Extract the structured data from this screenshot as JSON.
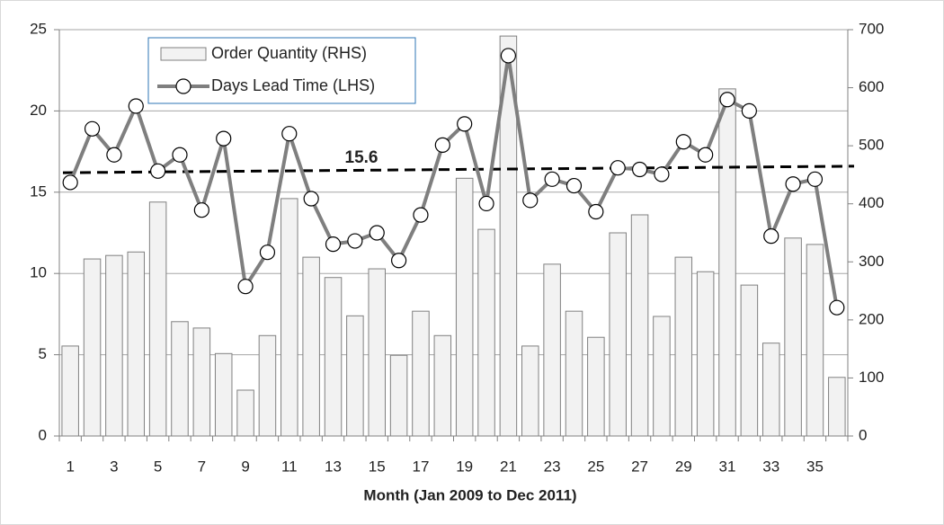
{
  "chart_data": {
    "type": "bar_line",
    "xlabel": "Month (Jan 2009 to Dec 2011)",
    "categories": [
      "1",
      null,
      "3",
      null,
      "5",
      null,
      "7",
      null,
      "9",
      null,
      "11",
      null,
      "13",
      null,
      "15",
      null,
      "17",
      null,
      "19",
      null,
      "21",
      null,
      "23",
      null,
      "25",
      null,
      "27",
      null,
      "29",
      null,
      "31",
      null,
      "33",
      null,
      "35",
      null
    ],
    "series": [
      {
        "name": "Order Quantity (RHS)",
        "type": "bar",
        "axis": "y2",
        "color": "#f2f2f2",
        "values": [
          155,
          305,
          311,
          317,
          403,
          197,
          186,
          142,
          79,
          173,
          409,
          308,
          273,
          207,
          288,
          139,
          215,
          173,
          444,
          356,
          689,
          155,
          296,
          215,
          170,
          350,
          381,
          206,
          308,
          283,
          598,
          260,
          160,
          341,
          330,
          101
        ]
      },
      {
        "name": "Days Lead Time (LHS)",
        "type": "line",
        "axis": "y",
        "color": "#7f7f7f",
        "values": [
          15.6,
          18.9,
          17.3,
          20.3,
          16.3,
          17.3,
          13.9,
          18.3,
          9.2,
          11.3,
          18.6,
          14.6,
          11.8,
          12.0,
          12.5,
          10.8,
          13.6,
          17.9,
          19.2,
          14.3,
          23.4,
          14.5,
          15.8,
          15.4,
          13.8,
          16.5,
          16.4,
          16.1,
          18.1,
          17.3,
          20.7,
          20.0,
          12.3,
          15.5,
          15.8,
          7.9
        ]
      }
    ],
    "trendline": {
      "start": 16.2,
      "end": 16.6,
      "color": "#000000"
    },
    "annotation": "15.6",
    "ylim": [
      0,
      25
    ],
    "yticks": [
      0,
      5,
      10,
      15,
      20,
      25
    ],
    "y2lim": [
      0,
      700
    ],
    "y2ticks": [
      0,
      100,
      200,
      300,
      400,
      500,
      600,
      700
    ],
    "grid": true,
    "legend": "top-left"
  }
}
